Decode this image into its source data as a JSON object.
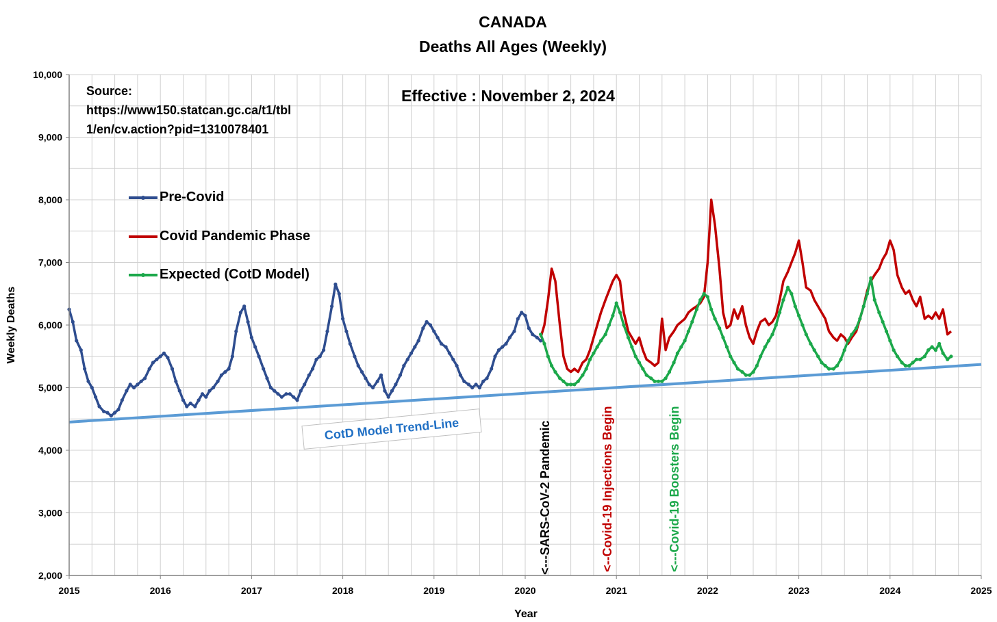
{
  "colors": {
    "pre_covid": "#2E4D8F",
    "pandemic": "#C00000",
    "expected": "#1BA84A",
    "trend": "#5B9BD5",
    "grid": "#D0D0D0",
    "sars_label": "#000000",
    "injections_label": "#C00000",
    "boosters_label": "#1BA84A",
    "trend_label": "#1F6FC4"
  },
  "annotations": {
    "source_line1": "Source:",
    "source_line2": "https://www150.statcan.gc.ca/t1/tbl",
    "source_line3": "1/en/cv.action?pid=1310078401",
    "effective": "Effective : November 2, 2024",
    "trend_label": "CotD Model Trend-Line",
    "sars_label": "<---SARS-CoV-2 Pandemic",
    "injections_label": "<--Covid-19 Injections Begin",
    "boosters_label": "<---Covid-19 Boosters Begin"
  },
  "chart_data": {
    "type": "line",
    "title": "CANADA",
    "subtitle": "Deaths All Ages (Weekly)",
    "xlabel": "Year",
    "ylabel": "Weekly Deaths",
    "xlim": [
      2015,
      2025
    ],
    "ylim": [
      2000,
      10000
    ],
    "x_ticks": [
      "2015",
      "2016",
      "2017",
      "2018",
      "2019",
      "2020",
      "2021",
      "2022",
      "2023",
      "2024",
      "2025"
    ],
    "y_ticks": [
      "2,000",
      "3,000",
      "4,000",
      "5,000",
      "6,000",
      "7,000",
      "8,000",
      "9,000",
      "10,000"
    ],
    "grid": true,
    "legend_position": "upper-left",
    "series": [
      {
        "name": "Pre-Covid",
        "x": [
          2015.0,
          2015.04,
          2015.08,
          2015.13,
          2015.17,
          2015.21,
          2015.25,
          2015.29,
          2015.33,
          2015.38,
          2015.42,
          2015.46,
          2015.5,
          2015.54,
          2015.58,
          2015.63,
          2015.67,
          2015.71,
          2015.75,
          2015.79,
          2015.83,
          2015.88,
          2015.92,
          2015.96,
          2016.0,
          2016.04,
          2016.08,
          2016.13,
          2016.17,
          2016.21,
          2016.25,
          2016.29,
          2016.33,
          2016.38,
          2016.42,
          2016.46,
          2016.5,
          2016.54,
          2016.58,
          2016.63,
          2016.67,
          2016.71,
          2016.75,
          2016.79,
          2016.83,
          2016.88,
          2016.92,
          2016.96,
          2017.0,
          2017.04,
          2017.08,
          2017.13,
          2017.17,
          2017.21,
          2017.25,
          2017.29,
          2017.33,
          2017.38,
          2017.42,
          2017.46,
          2017.5,
          2017.54,
          2017.58,
          2017.63,
          2017.67,
          2017.71,
          2017.75,
          2017.79,
          2017.83,
          2017.88,
          2017.92,
          2017.96,
          2018.0,
          2018.04,
          2018.08,
          2018.13,
          2018.17,
          2018.21,
          2018.25,
          2018.29,
          2018.33,
          2018.38,
          2018.42,
          2018.46,
          2018.5,
          2018.54,
          2018.58,
          2018.63,
          2018.67,
          2018.71,
          2018.75,
          2018.79,
          2018.83,
          2018.88,
          2018.92,
          2018.96,
          2019.0,
          2019.04,
          2019.08,
          2019.13,
          2019.17,
          2019.21,
          2019.25,
          2019.29,
          2019.33,
          2019.38,
          2019.42,
          2019.46,
          2019.5,
          2019.54,
          2019.58,
          2019.63,
          2019.67,
          2019.71,
          2019.75,
          2019.79,
          2019.83,
          2019.88,
          2019.92,
          2019.96,
          2020.0,
          2020.04,
          2020.08,
          2020.13,
          2020.17
        ],
        "values": [
          6250,
          6050,
          5750,
          5600,
          5300,
          5100,
          5000,
          4850,
          4700,
          4620,
          4600,
          4550,
          4600,
          4650,
          4800,
          4950,
          5050,
          5000,
          5050,
          5100,
          5150,
          5300,
          5400,
          5450,
          5500,
          5550,
          5480,
          5300,
          5100,
          4950,
          4800,
          4700,
          4750,
          4700,
          4800,
          4900,
          4850,
          4950,
          5000,
          5100,
          5200,
          5250,
          5300,
          5500,
          5900,
          6200,
          6300,
          6050,
          5800,
          5650,
          5500,
          5300,
          5150,
          5000,
          4950,
          4900,
          4850,
          4900,
          4900,
          4850,
          4800,
          4950,
          5050,
          5200,
          5300,
          5450,
          5500,
          5600,
          5900,
          6300,
          6650,
          6500,
          6100,
          5900,
          5700,
          5500,
          5350,
          5250,
          5150,
          5050,
          5000,
          5100,
          5200,
          4950,
          4850,
          4950,
          5050,
          5200,
          5350,
          5450,
          5550,
          5650,
          5750,
          5950,
          6050,
          6000,
          5900,
          5800,
          5700,
          5650,
          5550,
          5450,
          5350,
          5200,
          5100,
          5050,
          5000,
          5050,
          5000,
          5100,
          5150,
          5300,
          5500,
          5600,
          5650,
          5700,
          5800,
          5900,
          6100,
          6200,
          6150,
          5950,
          5850,
          5800,
          5750
        ]
      },
      {
        "name": "Covid Pandemic Phase",
        "x": [
          2020.17,
          2020.21,
          2020.25,
          2020.29,
          2020.33,
          2020.38,
          2020.42,
          2020.46,
          2020.5,
          2020.54,
          2020.58,
          2020.63,
          2020.67,
          2020.71,
          2020.75,
          2020.79,
          2020.83,
          2020.88,
          2020.92,
          2020.96,
          2021.0,
          2021.04,
          2021.08,
          2021.13,
          2021.17,
          2021.21,
          2021.25,
          2021.29,
          2021.33,
          2021.38,
          2021.42,
          2021.46,
          2021.5,
          2021.54,
          2021.58,
          2021.63,
          2021.67,
          2021.71,
          2021.75,
          2021.79,
          2021.83,
          2021.88,
          2021.92,
          2021.96,
          2022.0,
          2022.04,
          2022.08,
          2022.13,
          2022.17,
          2022.21,
          2022.25,
          2022.29,
          2022.33,
          2022.38,
          2022.42,
          2022.46,
          2022.5,
          2022.54,
          2022.58,
          2022.63,
          2022.67,
          2022.71,
          2022.75,
          2022.79,
          2022.83,
          2022.88,
          2022.92,
          2022.96,
          2023.0,
          2023.04,
          2023.08,
          2023.13,
          2023.17,
          2023.21,
          2023.25,
          2023.29,
          2023.33,
          2023.38,
          2023.42,
          2023.46,
          2023.5,
          2023.54,
          2023.58,
          2023.63,
          2023.67,
          2023.71,
          2023.75,
          2023.79,
          2023.83,
          2023.88,
          2023.92,
          2023.96,
          2024.0,
          2024.04,
          2024.08,
          2024.13,
          2024.17,
          2024.21,
          2024.25,
          2024.29,
          2024.33,
          2024.38,
          2024.42,
          2024.46,
          2024.5,
          2024.54,
          2024.58,
          2024.63,
          2024.67
        ],
        "values": [
          5800,
          6000,
          6400,
          6900,
          6700,
          6000,
          5500,
          5300,
          5250,
          5300,
          5250,
          5400,
          5450,
          5600,
          5800,
          6000,
          6200,
          6400,
          6550,
          6700,
          6800,
          6700,
          6200,
          5900,
          5800,
          5700,
          5800,
          5600,
          5450,
          5400,
          5350,
          5400,
          6100,
          5600,
          5800,
          5900,
          6000,
          6050,
          6100,
          6200,
          6250,
          6300,
          6350,
          6450,
          7000,
          8000,
          7600,
          6900,
          6200,
          5950,
          6000,
          6250,
          6100,
          6300,
          6000,
          5800,
          5700,
          5900,
          6050,
          6100,
          6000,
          6050,
          6150,
          6400,
          6700,
          6850,
          7000,
          7150,
          7350,
          7000,
          6600,
          6550,
          6400,
          6300,
          6200,
          6100,
          5900,
          5800,
          5750,
          5850,
          5800,
          5700,
          5800,
          5900,
          6100,
          6300,
          6550,
          6700,
          6800,
          6900,
          7050,
          7150,
          7350,
          7200,
          6800,
          6600,
          6500,
          6550,
          6400,
          6300,
          6450,
          6100,
          6150,
          6100,
          6200,
          6100,
          6250,
          5850,
          5900
        ]
      },
      {
        "name": "Expected (CotD Model)",
        "x": [
          2020.17,
          2020.21,
          2020.25,
          2020.29,
          2020.33,
          2020.38,
          2020.42,
          2020.46,
          2020.5,
          2020.54,
          2020.58,
          2020.63,
          2020.67,
          2020.71,
          2020.75,
          2020.79,
          2020.83,
          2020.88,
          2020.92,
          2020.96,
          2021.0,
          2021.04,
          2021.08,
          2021.13,
          2021.17,
          2021.21,
          2021.25,
          2021.29,
          2021.33,
          2021.38,
          2021.42,
          2021.46,
          2021.5,
          2021.54,
          2021.58,
          2021.63,
          2021.67,
          2021.71,
          2021.75,
          2021.79,
          2021.83,
          2021.88,
          2021.92,
          2021.96,
          2022.0,
          2022.04,
          2022.08,
          2022.13,
          2022.17,
          2022.21,
          2022.25,
          2022.29,
          2022.33,
          2022.38,
          2022.42,
          2022.46,
          2022.5,
          2022.54,
          2022.58,
          2022.63,
          2022.67,
          2022.71,
          2022.75,
          2022.79,
          2022.83,
          2022.88,
          2022.92,
          2022.96,
          2023.0,
          2023.04,
          2023.08,
          2023.13,
          2023.17,
          2023.21,
          2023.25,
          2023.29,
          2023.33,
          2023.38,
          2023.42,
          2023.46,
          2023.5,
          2023.54,
          2023.58,
          2023.63,
          2023.67,
          2023.71,
          2023.75,
          2023.79,
          2023.83,
          2023.88,
          2023.92,
          2023.96,
          2024.0,
          2024.04,
          2024.08,
          2024.13,
          2024.17,
          2024.21,
          2024.25,
          2024.29,
          2024.33,
          2024.38,
          2024.42,
          2024.46,
          2024.5,
          2024.54,
          2024.58,
          2024.63,
          2024.67
        ],
        "values": [
          5850,
          5700,
          5500,
          5350,
          5250,
          5150,
          5100,
          5050,
          5050,
          5050,
          5100,
          5200,
          5300,
          5450,
          5550,
          5650,
          5750,
          5850,
          6000,
          6150,
          6350,
          6200,
          6000,
          5800,
          5650,
          5500,
          5400,
          5300,
          5200,
          5150,
          5100,
          5100,
          5100,
          5150,
          5250,
          5400,
          5550,
          5650,
          5750,
          5900,
          6050,
          6250,
          6400,
          6500,
          6450,
          6250,
          6100,
          5950,
          5800,
          5650,
          5500,
          5400,
          5300,
          5250,
          5200,
          5200,
          5250,
          5350,
          5500,
          5650,
          5750,
          5850,
          6000,
          6200,
          6400,
          6600,
          6500,
          6300,
          6150,
          6000,
          5850,
          5700,
          5600,
          5500,
          5400,
          5350,
          5300,
          5300,
          5350,
          5450,
          5600,
          5750,
          5850,
          5950,
          6100,
          6300,
          6500,
          6750,
          6400,
          6200,
          6050,
          5900,
          5750,
          5600,
          5500,
          5400,
          5350,
          5350,
          5400,
          5450,
          5450,
          5500,
          5600,
          5650,
          5600,
          5700,
          5550,
          5450,
          5500
        ]
      },
      {
        "name": "CotD Model Trend-Line",
        "x": [
          2015,
          2025
        ],
        "values": [
          4450,
          5370
        ]
      }
    ],
    "vertical_markers": [
      {
        "x": 2020.2,
        "label": "<---SARS-CoV-2 Pandemic"
      },
      {
        "x": 2020.95,
        "label": "<--Covid-19 Injections Begin"
      },
      {
        "x": 2021.6,
        "label": "<---Covid-19 Boosters Begin"
      }
    ]
  }
}
